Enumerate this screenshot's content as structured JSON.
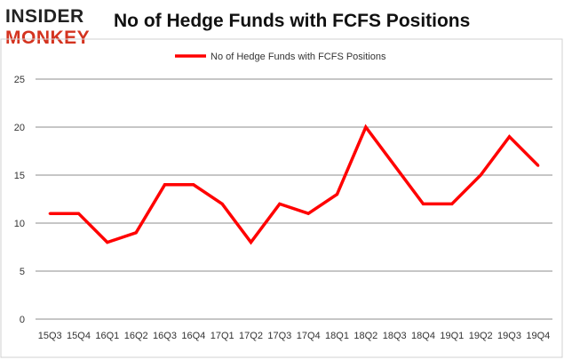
{
  "logo": {
    "line1": "INSIDER",
    "line2": "MONKEY"
  },
  "chart_data": {
    "type": "line",
    "title": "No of Hedge Funds with FCFS Positions",
    "categories": [
      "15Q3",
      "15Q4",
      "16Q1",
      "16Q2",
      "16Q3",
      "16Q4",
      "17Q1",
      "17Q2",
      "17Q3",
      "17Q4",
      "18Q1",
      "18Q2",
      "18Q3",
      "18Q4",
      "19Q1",
      "19Q2",
      "19Q3",
      "19Q4"
    ],
    "series": [
      {
        "name": "No of Hedge Funds with FCFS Positions",
        "color": "#ff0000",
        "values": [
          11,
          11,
          8,
          9,
          14,
          14,
          12,
          8,
          12,
          11,
          13,
          20,
          16,
          12,
          12,
          15,
          19,
          16
        ]
      }
    ],
    "yticks": [
      0,
      5,
      10,
      15,
      20,
      25
    ],
    "ylim": [
      0,
      25
    ],
    "grid": true,
    "legend": "top"
  }
}
